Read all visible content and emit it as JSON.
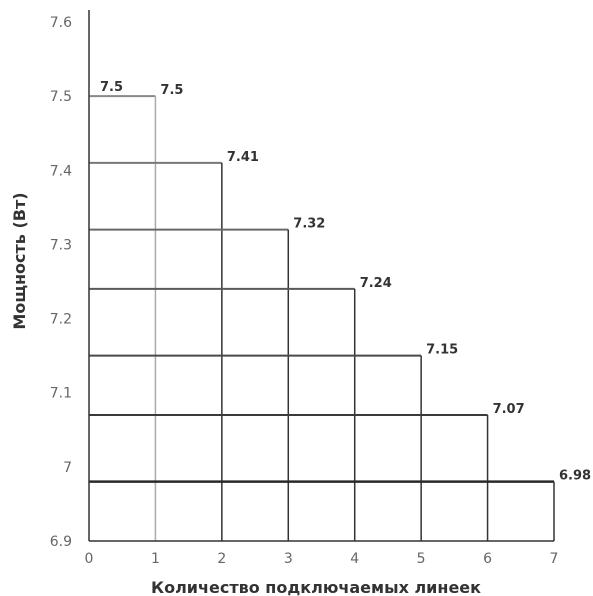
{
  "chart_data": {
    "type": "bar",
    "title": "",
    "xlabel": "Количество подключаемых линеек",
    "ylabel": "Мощность (Вт)",
    "ylim": [
      6.9,
      7.6
    ],
    "xlim": [
      0,
      7
    ],
    "grid": false,
    "categories": [
      "1",
      "2",
      "3",
      "4",
      "5",
      "6",
      "7"
    ],
    "values": [
      7.5,
      7.41,
      7.32,
      7.24,
      7.15,
      7.07,
      6.98
    ],
    "value_labels": [
      "7.5",
      "7.41",
      "7.32",
      "7.24",
      "7.15",
      "7.07",
      "6.98"
    ],
    "start_label": "7.5",
    "y_ticks": [
      "6.9",
      "7",
      "7.1",
      "7.2",
      "7.3",
      "7.4",
      "7.5",
      "7.6"
    ],
    "x_ticks": [
      "0",
      "1",
      "2",
      "3",
      "4",
      "5",
      "6",
      "7"
    ],
    "colors": {
      "axis": "#333333",
      "step_dark": "#2a2a2a",
      "step_light": "#888888",
      "vline": "#333333",
      "vline_light": "#aaaaaa"
    }
  }
}
